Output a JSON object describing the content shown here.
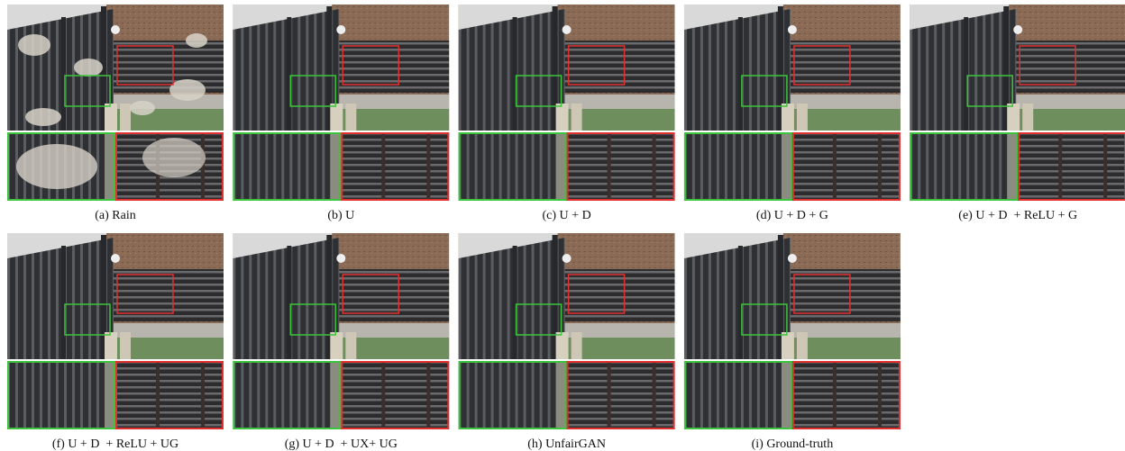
{
  "figure": {
    "panels": [
      {
        "caption": "(a) Rain"
      },
      {
        "caption": "(b) U"
      },
      {
        "caption": "(c) U + D"
      },
      {
        "caption": "(d) U + D + G"
      },
      {
        "caption": "(e) U + D  + ReLU + G"
      },
      {
        "caption": "(f) U + D  + ReLU + UG"
      },
      {
        "caption": "(g) U + D  + UX+ UG"
      },
      {
        "caption": "(h) UnfairGAN"
      },
      {
        "caption": "(i) Ground-truth"
      }
    ]
  }
}
